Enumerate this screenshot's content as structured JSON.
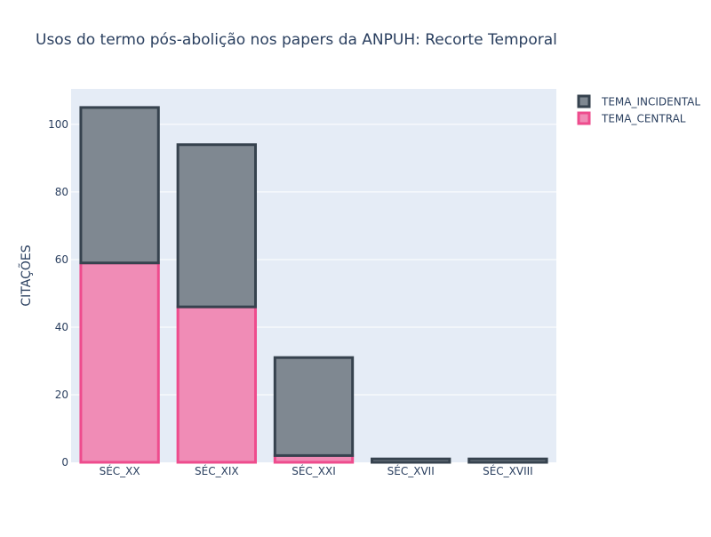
{
  "chart_data": {
    "type": "bar",
    "barmode": "stack",
    "title": "Usos do termo pós-abolição nos papers da ANPUH: Recorte Temporal",
    "xlabel": "",
    "ylabel": "CITAÇÕES",
    "categories": [
      "SÉC_XX",
      "SÉC_XIX",
      "SÉC_XXI",
      "SÉC_XVII",
      "SÉC_XVIII"
    ],
    "series": [
      {
        "name": "TEMA_CENTRAL",
        "values": [
          59,
          46,
          2,
          0,
          0
        ],
        "fill": "#f08cb6",
        "stroke": "#ee4c8d"
      },
      {
        "name": "TEMA_INCIDENTAL",
        "values": [
          46,
          48,
          29,
          1,
          1
        ],
        "fill": "#7f8891",
        "stroke": "#36424e"
      }
    ],
    "ylim": [
      0,
      110.5
    ],
    "yticks": [
      0,
      20,
      40,
      60,
      80,
      100
    ],
    "grid": true,
    "legend_position": "top-right",
    "legend_order": [
      "TEMA_INCIDENTAL",
      "TEMA_CENTRAL"
    ],
    "plot_bgcolor": "#e5ecf6"
  }
}
